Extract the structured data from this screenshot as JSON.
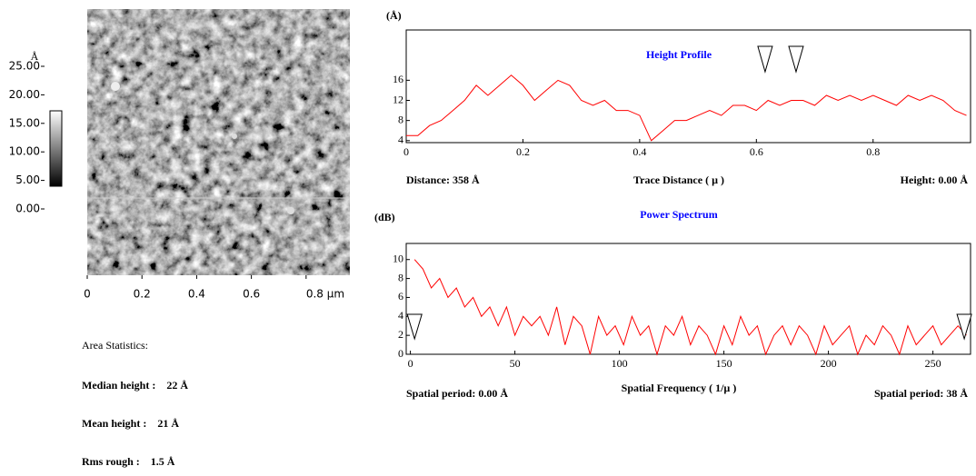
{
  "colorbar": {
    "unit": "Å",
    "lim": [
      0,
      25
    ],
    "ticks": [
      {
        "value": 25,
        "label": "25.00"
      },
      {
        "value": 20,
        "label": "20.00"
      },
      {
        "value": 15,
        "label": "15.00"
      },
      {
        "value": 10,
        "label": "10.00"
      },
      {
        "value": 5,
        "label": "5.00"
      },
      {
        "value": 0,
        "label": "0.00"
      }
    ]
  },
  "afm_image": {
    "xlim": [
      0,
      0.96
    ],
    "xticks": [
      0,
      0.2,
      0.4,
      0.6,
      {
        "value": 0.8,
        "label": "0.8 µm"
      }
    ]
  },
  "area_statistics": {
    "title": "Area Statistics:",
    "items": [
      {
        "label": "Median height :",
        "value": "22 Å"
      },
      {
        "label": "Mean height :",
        "value": "21 Å"
      },
      {
        "label": "Rms rough :",
        "value": "1.5 Å"
      }
    ]
  },
  "chart_data": [
    {
      "type": "line",
      "title": "Height Profile",
      "title_color": "#0000ff",
      "y_label": "(Å)",
      "x_label": "Trace Distance ( µ )",
      "left_note": "Distance: 358 Å",
      "right_note": "Height: 0.00 Å",
      "xlim": [
        0,
        0.967
      ],
      "ylim": [
        3.6,
        26
      ],
      "xticks": [
        0,
        0.2,
        0.4,
        0.6,
        0.8
      ],
      "yticks": [
        4,
        8,
        12,
        16
      ],
      "cursors": [
        0.615,
        0.668
      ],
      "series": [
        {
          "color": "#ff0000",
          "x": [
            0,
            0.02,
            0.04,
            0.06,
            0.08,
            0.1,
            0.12,
            0.14,
            0.16,
            0.18,
            0.2,
            0.22,
            0.24,
            0.26,
            0.28,
            0.3,
            0.32,
            0.34,
            0.36,
            0.38,
            0.4,
            0.42,
            0.44,
            0.46,
            0.48,
            0.5,
            0.52,
            0.54,
            0.56,
            0.58,
            0.6,
            0.62,
            0.64,
            0.66,
            0.68,
            0.7,
            0.72,
            0.74,
            0.76,
            0.78,
            0.8,
            0.82,
            0.84,
            0.86,
            0.88,
            0.9,
            0.92,
            0.94,
            0.96
          ],
          "values": [
            5,
            5,
            7,
            8,
            10,
            12,
            15,
            13,
            15,
            17,
            15,
            12,
            14,
            16,
            15,
            12,
            11,
            12,
            10,
            10,
            9,
            4,
            6,
            8,
            8,
            9,
            10,
            9,
            11,
            11,
            10,
            12,
            11,
            12,
            12,
            11,
            13,
            12,
            13,
            12,
            13,
            12,
            11,
            13,
            12,
            13,
            12,
            10,
            9
          ]
        }
      ]
    },
    {
      "type": "line",
      "title": "Power Spectrum",
      "title_color": "#0000ff",
      "y_label": "(dB)",
      "x_label": "Spatial Frequency ( 1/µ )",
      "left_note": "Spatial period: 0.00 Å",
      "right_note": "Spatial period: 38 Å",
      "xlim": [
        -2,
        268
      ],
      "ylim": [
        0,
        11.7
      ],
      "xticks": [
        0,
        50,
        100,
        150,
        200,
        250
      ],
      "yticks": [
        0,
        2,
        4,
        6,
        8,
        10
      ],
      "cursors": [
        2,
        265
      ],
      "series": [
        {
          "color": "#ff0000",
          "x": [
            2,
            6,
            10,
            14,
            18,
            22,
            26,
            30,
            34,
            38,
            42,
            46,
            50,
            54,
            58,
            62,
            66,
            70,
            74,
            78,
            82,
            86,
            90,
            94,
            98,
            102,
            106,
            110,
            114,
            118,
            122,
            126,
            130,
            134,
            138,
            142,
            146,
            150,
            154,
            158,
            162,
            166,
            170,
            174,
            178,
            182,
            186,
            190,
            194,
            198,
            202,
            206,
            210,
            214,
            218,
            222,
            226,
            230,
            234,
            238,
            242,
            246,
            250,
            254,
            258,
            262,
            266
          ],
          "values": [
            10,
            9,
            7,
            8,
            6,
            7,
            5,
            6,
            4,
            5,
            3,
            5,
            2,
            4,
            3,
            4,
            2,
            5,
            1,
            4,
            3,
            0,
            4,
            2,
            3,
            1,
            4,
            2,
            3,
            0,
            3,
            2,
            4,
            1,
            3,
            2,
            0,
            3,
            1,
            4,
            2,
            3,
            0,
            2,
            3,
            1,
            3,
            2,
            0,
            3,
            1,
            2,
            3,
            0,
            2,
            1,
            3,
            2,
            0,
            3,
            1,
            2,
            3,
            1,
            2,
            3,
            2
          ]
        }
      ]
    }
  ]
}
